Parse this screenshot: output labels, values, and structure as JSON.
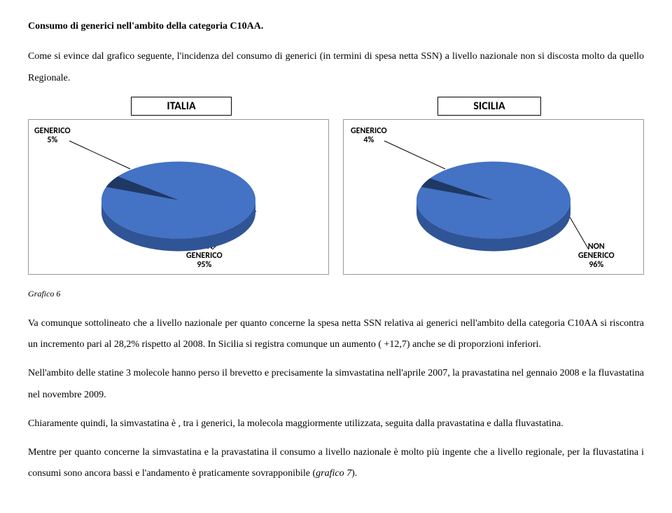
{
  "title": "Consumo di generici nell'ambito della categoria C10AA.",
  "intro": "Come si evince dal grafico seguente, l'incidenza del consumo di generici (in termini di spesa netta SSN) a livello nazionale non si discosta molto da quello Regionale.",
  "labels": {
    "left": "ITALIA",
    "right": "SICILIA"
  },
  "charts": {
    "italia": {
      "generic_label": "GENERICO\n5%",
      "nongeneric_label": "NON\nGENERICO\n95%",
      "generic_pct": 5,
      "colors": {
        "generic": "#1f3864",
        "nongeneric": "#4472c4",
        "side": "#2f5597"
      }
    },
    "sicilia": {
      "generic_label": "GENERICO\n4%",
      "nongeneric_label": "NON\nGENERICO\n96%",
      "generic_pct": 4,
      "colors": {
        "generic": "#1f3864",
        "nongeneric": "#4472c4",
        "side": "#2f5597"
      }
    }
  },
  "caption": "Grafico 6",
  "body1": "Va comunque sottolineato che a livello nazionale per quanto concerne la spesa netta SSN relativa ai generici nell'ambito della categoria C10AA si riscontra  un incremento pari al 28,2% rispetto al 2008. In Sicilia si registra comunque un aumento ( +12,7) anche se di proporzioni inferiori.",
  "body2": "Nell'ambito delle statine 3 molecole hanno perso il brevetto e precisamente la simvastatina nell'aprile 2007, la pravastatina nel gennaio 2008 e la fluvastatina nel novembre 2009.",
  "body3": "Chiaramente quindi, la simvastatina è , tra i generici, la molecola maggiormente utilizzata, seguita dalla pravastatina e dalla fluvastatina.",
  "body4_a": "Mentre per quanto concerne la simvastatina e la pravastatina il consumo a livello nazionale è molto più ingente che a livello regionale, per la fluvastatina i consumi sono ancora bassi e l'andamento è praticamente sovrapponibile (",
  "body4_i": "grafico 7",
  "body4_b": ")."
}
